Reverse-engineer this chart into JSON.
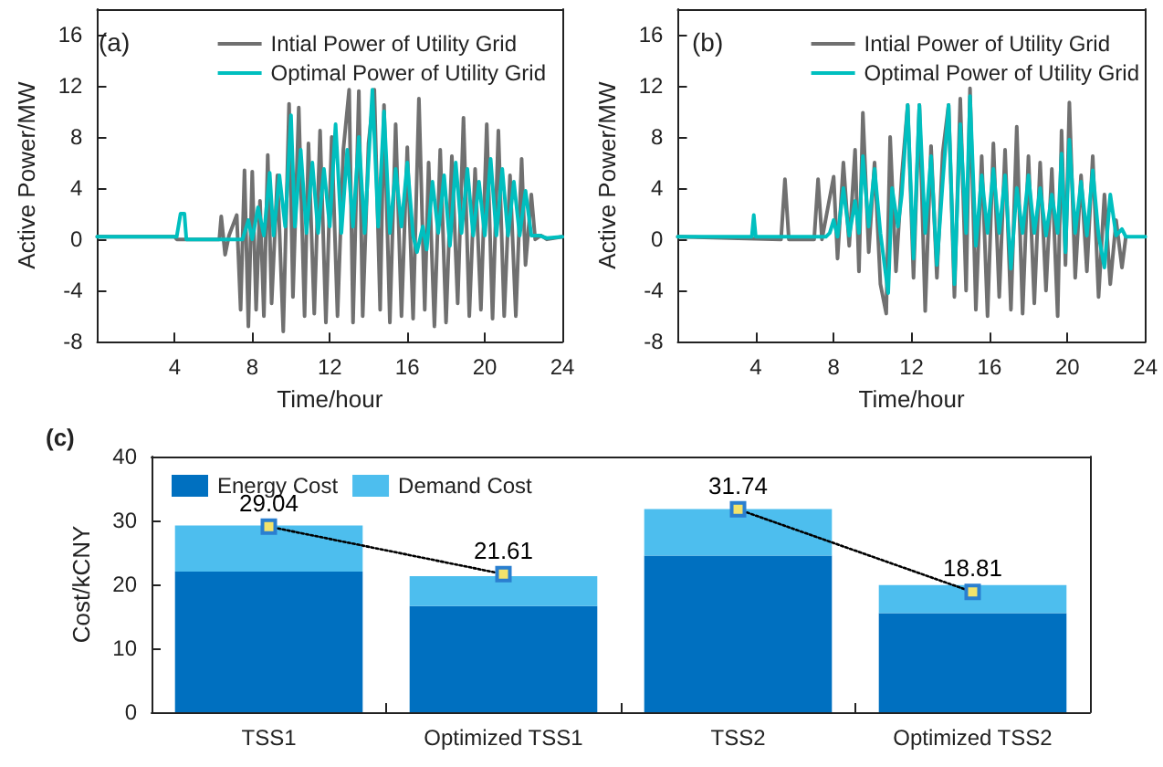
{
  "chart_data": [
    {
      "type": "line",
      "title": "(a)",
      "xlabel": "Time/hour",
      "ylabel": "Active Power/MW",
      "xlim": [
        0,
        24
      ],
      "xticks": [
        4,
        8,
        12,
        16,
        20,
        24
      ],
      "ylim": [
        -8,
        18
      ],
      "yticks": [
        -8,
        -4,
        0,
        4,
        8,
        12,
        16
      ],
      "grid": false,
      "legend": "top right",
      "marker": "none",
      "line_style": "solid",
      "series": [
        {
          "name": "Intial Power of Utility Grid",
          "color": "#707070",
          "x": [
            0,
            4,
            4.1,
            6.3,
            6.4,
            6.6,
            6.8,
            7.2,
            7.4,
            7.6,
            7.8,
            8.0,
            8.2,
            8.4,
            8.6,
            8.8,
            9.0,
            9.3,
            9.6,
            9.9,
            10.1,
            10.4,
            10.7,
            10.9,
            11.2,
            11.5,
            11.8,
            12.1,
            12.4,
            12.7,
            13.0,
            13.2,
            13.5,
            13.7,
            14.0,
            14.3,
            14.6,
            14.8,
            15.1,
            15.4,
            15.7,
            16.0,
            16.3,
            16.6,
            16.9,
            17.1,
            17.4,
            17.7,
            18.0,
            18.3,
            18.6,
            18.9,
            19.2,
            19.5,
            19.8,
            20.1,
            20.4,
            20.7,
            21.0,
            21.3,
            21.6,
            21.9,
            22.1,
            22.4,
            22.6,
            22.9,
            23.2,
            24
          ],
          "values": [
            0.2,
            0.2,
            0,
            0,
            1.8,
            -1.2,
            0.3,
            1.9,
            -5.5,
            5.4,
            -6.8,
            5.3,
            -5.5,
            3.0,
            -6.0,
            6.6,
            -5.0,
            5.0,
            -7.2,
            10.6,
            -4.5,
            10.3,
            -6.0,
            7.5,
            -5.8,
            8.5,
            -6.5,
            8.0,
            -6.0,
            7.0,
            11.7,
            -6.5,
            11.6,
            -6.0,
            7.5,
            11.7,
            -5.5,
            10.5,
            -6.5,
            9.0,
            -6.0,
            7.2,
            -6.2,
            11.0,
            -5.5,
            6.0,
            -6.8,
            7.0,
            -6.5,
            6.5,
            -5.0,
            9.5,
            -6.0,
            5.5,
            -5.5,
            9.0,
            -6.2,
            8.5,
            -6.0,
            5.0,
            -6.0,
            6.3,
            -2.0,
            3.5,
            0,
            0.3,
            0,
            0.2
          ]
        },
        {
          "name": "Optimal Power of Utility Grid",
          "color": "#00bfbf",
          "x": [
            0,
            4.1,
            4.3,
            4.5,
            4.6,
            7.5,
            7.8,
            8.0,
            8.3,
            8.6,
            8.9,
            9.1,
            9.4,
            9.7,
            10.0,
            10.2,
            10.5,
            10.8,
            11.1,
            11.4,
            11.7,
            12.0,
            12.3,
            12.6,
            12.9,
            13.2,
            13.5,
            13.8,
            14.2,
            14.5,
            14.8,
            15.1,
            15.4,
            15.7,
            16.0,
            16.3,
            16.5,
            16.8,
            17.0,
            17.3,
            17.6,
            17.9,
            18.2,
            18.5,
            18.8,
            19.1,
            19.4,
            19.7,
            20.0,
            20.3,
            20.6,
            20.9,
            21.2,
            21.5,
            21.8,
            22.1,
            22.4,
            22.8,
            23.2,
            24
          ],
          "values": [
            0.2,
            0.2,
            2.0,
            2.0,
            0,
            0,
            1.5,
            0,
            2.5,
            0.3,
            5.2,
            0.3,
            5.0,
            1,
            9.7,
            1.0,
            7.0,
            0.5,
            6.0,
            0.5,
            5.5,
            1.0,
            9.0,
            0.5,
            7.0,
            1,
            8.0,
            0.5,
            11.7,
            1,
            10.0,
            0.5,
            5.5,
            1,
            6.0,
            0.3,
            -1.0,
            1.0,
            -0.8,
            4.5,
            0.5,
            5.0,
            -0.5,
            6.0,
            0.5,
            5.5,
            0.3,
            4.5,
            0.3,
            6.3,
            0.3,
            5.5,
            0.3,
            4.5,
            0.3,
            3.8,
            0.3,
            0.3,
            0.1,
            0.2
          ]
        }
      ]
    },
    {
      "type": "line",
      "title": "(b)",
      "xlabel": "Time/hour",
      "ylabel": "Active Power/MW",
      "xlim": [
        0,
        24
      ],
      "xticks": [
        4,
        8,
        12,
        16,
        20,
        24
      ],
      "ylim": [
        -8,
        18
      ],
      "yticks": [
        -8,
        -4,
        0,
        4,
        8,
        12,
        16
      ],
      "grid": false,
      "legend": "top right",
      "marker": "none",
      "line_style": "solid",
      "series": [
        {
          "name": "Intial Power of Utility Grid",
          "color": "#707070",
          "x": [
            0,
            5.3,
            5.5,
            5.7,
            7.0,
            7.2,
            7.4,
            8.0,
            8.2,
            8.5,
            8.8,
            9.1,
            9.3,
            9.5,
            9.8,
            10.1,
            10.4,
            10.7,
            10.9,
            11.2,
            11.5,
            11.8,
            12.1,
            12.4,
            12.7,
            13.0,
            13.3,
            13.6,
            13.9,
            14.2,
            14.5,
            14.8,
            15.0,
            15.3,
            15.6,
            15.9,
            16.2,
            16.5,
            16.8,
            17.1,
            17.4,
            17.7,
            18.0,
            18.3,
            18.6,
            18.9,
            19.2,
            19.5,
            19.7,
            19.9,
            20.1,
            20.4,
            20.7,
            21.0,
            21.3,
            21.6,
            21.9,
            22.2,
            22.5,
            22.8,
            23.0
          ],
          "values": [
            0.2,
            0,
            4.7,
            0,
            0,
            4.7,
            0,
            4.9,
            -1.5,
            6.0,
            -0.5,
            7.0,
            -2.5,
            9.9,
            -1.0,
            6.0,
            -3.5,
            -5.8,
            8.0,
            -2.5,
            5.0,
            10.5,
            -3.0,
            10.5,
            -5.6,
            7.3,
            -3.0,
            6.8,
            10.5,
            -4.5,
            11.0,
            -4.0,
            11.8,
            -5.5,
            6.5,
            -6.0,
            7.5,
            -4.5,
            7.0,
            -5.5,
            8.8,
            -5.8,
            6.5,
            -5.0,
            6.0,
            -4.0,
            5.5,
            -6.0,
            8.5,
            -2.0,
            10.7,
            -3.0,
            5.0,
            -2.5,
            6.5,
            -4.5,
            3.5,
            -3.5,
            1.5,
            -2.2,
            0.2
          ]
        },
        {
          "name": "Optimal Power of Utility Grid",
          "color": "#00bfbf",
          "x": [
            0,
            3.8,
            3.9,
            4.0,
            7.6,
            7.8,
            8.0,
            8.2,
            8.5,
            8.8,
            9.1,
            9.3,
            9.5,
            9.8,
            10.1,
            10.4,
            10.8,
            11.0,
            11.3,
            11.5,
            11.8,
            12.1,
            12.4,
            12.7,
            13.0,
            13.3,
            13.6,
            13.9,
            14.2,
            14.5,
            14.8,
            15.0,
            15.3,
            15.6,
            15.9,
            16.2,
            16.5,
            16.8,
            17.1,
            17.4,
            17.7,
            18.0,
            18.3,
            18.6,
            18.9,
            19.2,
            19.5,
            19.7,
            19.9,
            20.1,
            20.4,
            20.7,
            21.0,
            21.3,
            21.6,
            21.9,
            22.2,
            22.5,
            22.8,
            23.0,
            24
          ],
          "values": [
            0.2,
            0.2,
            1.9,
            0.2,
            0.2,
            0.5,
            1.5,
            0.2,
            4.0,
            0.3,
            3.0,
            0.5,
            6.5,
            1.0,
            5.5,
            0.5,
            -4.2,
            4.0,
            1.0,
            3.5,
            10.5,
            -1.5,
            10.5,
            0.5,
            6.5,
            -2.0,
            4.5,
            10.5,
            -3.5,
            9.0,
            0.5,
            11.2,
            -0.5,
            5.0,
            0.5,
            5.5,
            0.5,
            5.0,
            -2.3,
            4.0,
            0.5,
            5.0,
            0.5,
            4.0,
            0.3,
            3.5,
            0.5,
            6.7,
            -1.0,
            7.8,
            0.5,
            4.5,
            0.3,
            5.4,
            0.3,
            -2.2,
            3.5,
            0.3,
            0.8,
            0.2,
            0.2
          ]
        }
      ]
    },
    {
      "type": "bar",
      "title": "(c)",
      "ylabel": "Cost/kCNY",
      "categories": [
        "TSS1",
        "Optimized TSS1",
        "TSS2",
        "Optimized TSS2"
      ],
      "stacked": true,
      "ylim": [
        0,
        40
      ],
      "yticks": [
        0,
        10,
        20,
        30,
        40
      ],
      "grid": false,
      "legend": "top left",
      "series": [
        {
          "name": "Energy Cost",
          "color": "#0070c0",
          "values": [
            22,
            16.6,
            24.5,
            15.5
          ]
        },
        {
          "name": "Demand Cost",
          "color": "#4dbeee",
          "values": [
            7.2,
            4.7,
            7.3,
            4.4
          ]
        },
        {
          "type": "line",
          "color": "#000000",
          "x": [
            "TSS1",
            "Optimized TSS1"
          ],
          "values": [
            29.04,
            21.61
          ],
          "value_labels": [
            "29.04",
            "21.61"
          ],
          "marker": "square",
          "line_style": "dotted"
        },
        {
          "type": "line",
          "color": "#000000",
          "x": [
            "TSS2",
            "Optimized TSS2"
          ],
          "values": [
            31.74,
            18.81
          ],
          "value_labels": [
            "31.74",
            "18.81"
          ],
          "marker": "square",
          "line_style": "dotted"
        }
      ]
    }
  ]
}
